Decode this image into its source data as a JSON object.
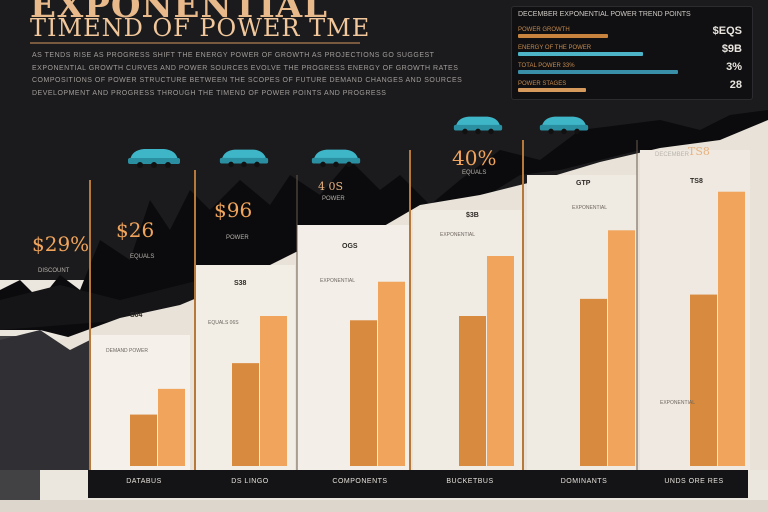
{
  "title": {
    "line1": "EXPONENTIAL",
    "line2": "TIMEND OF POWER TME"
  },
  "intro": {
    "lines": [
      "AS TENDS RISE AS PROGRESS SHIFT THE ENERGY POWER OF GROWTH AS PROJECTIONS GO SUGGEST",
      "EXPONENTIAL GROWTH CURVES AND POWER SOURCES EVOLVE THE PROGRESS ENERGY OF GROWTH RATES",
      "COMPOSITIONS OF POWER STRUCTURE BETWEEN THE SCOPES OF FUTURE DEMAND CHANGES AND SOURCES",
      "DEVELOPMENT AND PROGRESS THROUGH THE TIMEND OF POWER POINTS AND PROGRESS"
    ]
  },
  "panel": {
    "title": "DECEMBER EXPONENTIAL POWER TREND POINTS",
    "rows": [
      {
        "label": "POWER GROWTH",
        "value": "$EQS",
        "bar_color": "#c8843f",
        "bar_fraction": 0.4
      },
      {
        "label": "ENERGY OF THE POWER",
        "value": "$9B",
        "bar_color": "#4db4c8",
        "bar_fraction": 0.55
      },
      {
        "label": "TOTAL POWER 33%",
        "value": "3%",
        "bar_color": "#3a8fa8",
        "bar_fraction": 0.7
      },
      {
        "label": "POWER STAGES",
        "value": "28",
        "bar_color": "#d79a5d",
        "bar_fraction": 0.3
      }
    ]
  },
  "colors": {
    "accent": "#f0a45c",
    "bar_dark": "#d88a3e",
    "bar_light": "#f0a45c",
    "car": "#3fb6c8",
    "mountain": "#0c0c0e",
    "column_bg": "#f1ece4"
  },
  "icons": [
    "car-icon"
  ],
  "chart_data": {
    "type": "bar",
    "categories": [
      "DATABUS",
      "DS LINGO",
      "COMPONENTS",
      "BUCKETBUS",
      "DOMINANTS",
      "UNDS ORE RES"
    ],
    "series": [
      {
        "values": [
          24,
          48,
          68,
          70,
          78,
          80
        ]
      },
      {
        "values": [
          36,
          70,
          86,
          98,
          110,
          128
        ]
      }
    ],
    "ylim": [
      0,
      140
    ],
    "grid": false,
    "column_labels": [
      {
        "header": "$29%",
        "sub": "DISCOUNT",
        "label": "S04",
        "label_sub": "DEMAND POWER"
      },
      {
        "header": "$26",
        "sub": "EQUALS",
        "label": "S38",
        "label_sub": "EQUALS 06S"
      },
      {
        "header": "$96",
        "sub": "POWER",
        "label": "OGS",
        "label_sub": "EXPONENTIAL"
      },
      {
        "header": "4 0S",
        "sub": "POWER",
        "label": "$3B",
        "label_sub": "EXPONENTIAL"
      },
      {
        "header": "40%",
        "sub": "EQUALS",
        "label": "GTP",
        "label_sub": "EXPONENTIAL"
      },
      {
        "header": "TS8",
        "sub": "DECEMBER",
        "label": "TS8",
        "label_sub": "EXPONENTIAL"
      }
    ]
  }
}
